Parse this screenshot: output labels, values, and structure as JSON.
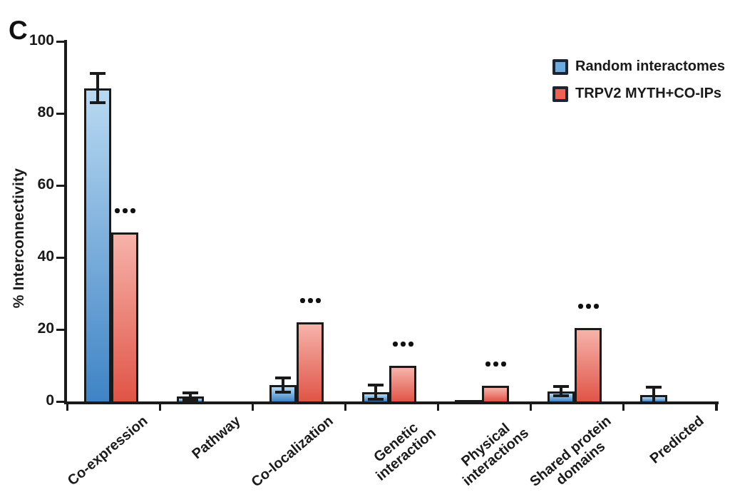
{
  "panel_label": "C",
  "legend": {
    "items": [
      {
        "label": "Random interactomes",
        "color_key": "blue"
      },
      {
        "label": "TRPV2 MYTH+CO-IPs",
        "color_key": "red"
      }
    ]
  },
  "colors": {
    "blue_top": "#b9d9f2",
    "blue_bottom": "#3f84c5",
    "blue_legend": "#6cabdd",
    "red_top": "#f6b3aa",
    "red_bottom": "#e05447",
    "red_legend": "#ee6153",
    "outline": "#1a1a1a",
    "axis": "#1a1a1a",
    "text": "#1a1a1a"
  },
  "chart_data": {
    "type": "bar",
    "title": "",
    "xlabel": "",
    "ylabel": "% Interconnectivity",
    "ylim": [
      0,
      100
    ],
    "yticks": [
      0,
      20,
      40,
      60,
      80,
      100
    ],
    "grid": false,
    "legend_position": "top-right",
    "categories": [
      "Co-expression",
      "Pathway",
      "Co-localization",
      "Genetic\ninteraction",
      "Physical\ninteractions",
      "Shared protein\ndomains",
      "Predicted"
    ],
    "series": [
      {
        "name": "Random interactomes",
        "color_key": "blue",
        "values": [
          87,
          1.3,
          4.5,
          2.5,
          0.4,
          2.8,
          1.8
        ],
        "errors": [
          4,
          1,
          2,
          2,
          0,
          1.3,
          2.2
        ]
      },
      {
        "name": "TRPV2 MYTH+CO-IPs",
        "color_key": "red",
        "values": [
          47,
          0,
          22,
          10,
          4.3,
          20.3,
          0
        ],
        "errors": [
          0,
          0,
          0,
          0,
          0,
          0,
          0
        ]
      }
    ],
    "significance": [
      "***",
      "",
      "***",
      "***",
      "***",
      "***",
      ""
    ]
  }
}
